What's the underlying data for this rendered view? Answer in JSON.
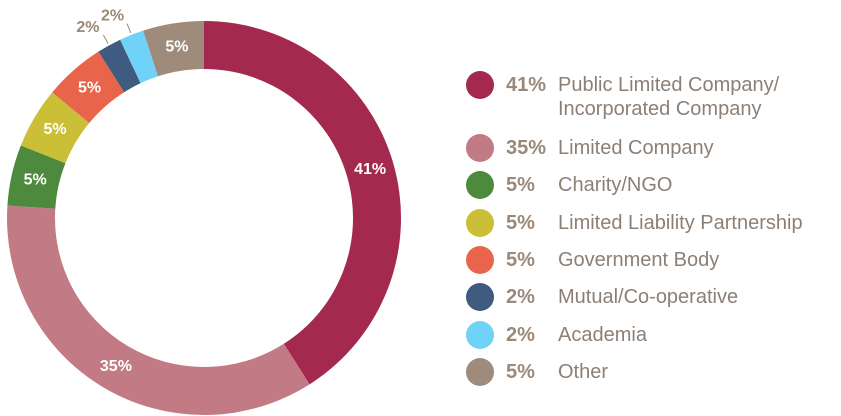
{
  "chart_data": {
    "type": "pie",
    "categories": [
      "Public Limited Company/\nIncorporated Company",
      "Limited Company",
      "Charity/NGO",
      "Limited Liability Partnership",
      "Government Body",
      "Mutual/Co-operative",
      "Academia",
      "Other"
    ],
    "values": [
      41,
      35,
      5,
      5,
      5,
      2,
      2,
      5
    ],
    "value_labels": [
      "41%",
      "35%",
      "5%",
      "5%",
      "5%",
      "2%",
      "2%",
      "5%"
    ],
    "colors": [
      "#a3294f",
      "#c27b84",
      "#4e8a3d",
      "#cabf36",
      "#e8654b",
      "#3f5b80",
      "#6fd2f6",
      "#9e8b7b"
    ],
    "legend": "right"
  }
}
